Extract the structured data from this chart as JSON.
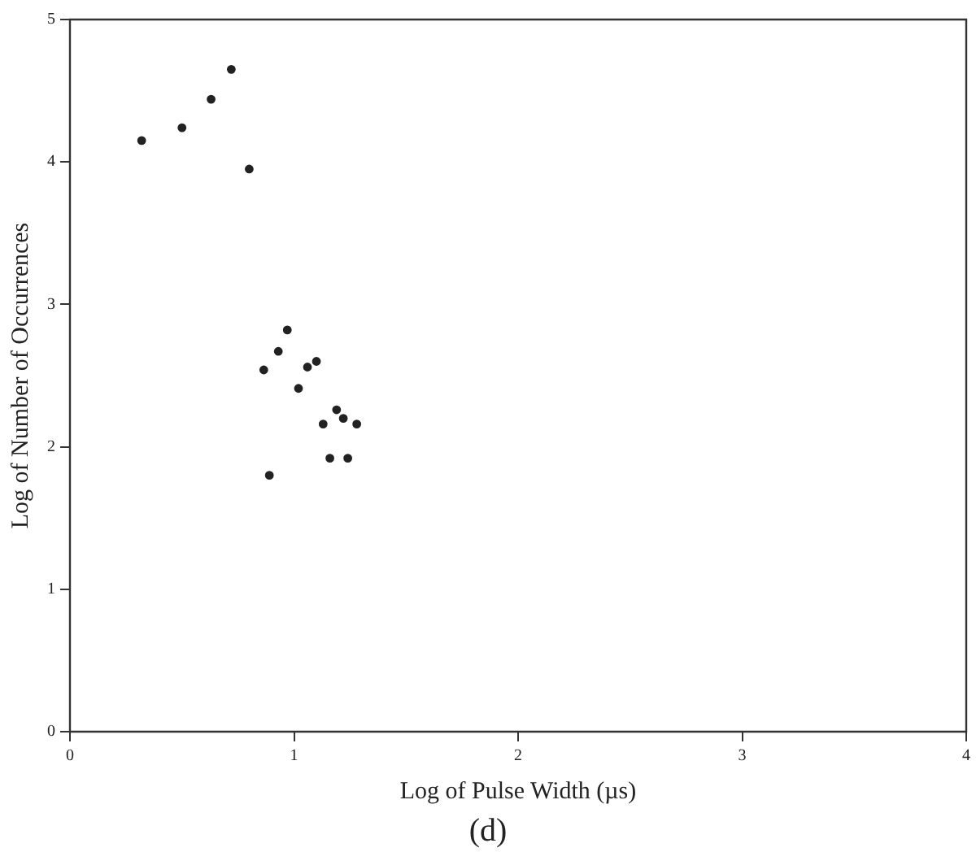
{
  "chart_data": {
    "type": "scatter",
    "xlabel": "Log of Pulse Width (µs)",
    "ylabel": "Log of Number of Occurrences",
    "annotations": [
      "(d)"
    ],
    "x": [
      0.32,
      0.5,
      0.63,
      0.72,
      0.8,
      0.865,
      0.89,
      0.93,
      0.97,
      1.02,
      1.06,
      1.1,
      1.13,
      1.16,
      1.19,
      1.22,
      1.24,
      1.28
    ],
    "series": [
      {
        "color": "#222222",
        "values": [
          4.15,
          4.24,
          4.44,
          4.65,
          3.95,
          2.54,
          1.8,
          2.67,
          2.82,
          2.41,
          2.56,
          2.6,
          2.16,
          1.92,
          2.26,
          2.2,
          1.92,
          2.16
        ]
      }
    ],
    "xlim": [
      0,
      4
    ],
    "xticks": [
      0,
      1,
      2,
      3,
      4
    ],
    "ylim": [
      0,
      5
    ],
    "yticks": [
      0,
      1,
      2,
      3,
      4,
      5
    ],
    "marker": "circle",
    "grid": false,
    "legend": false
  }
}
